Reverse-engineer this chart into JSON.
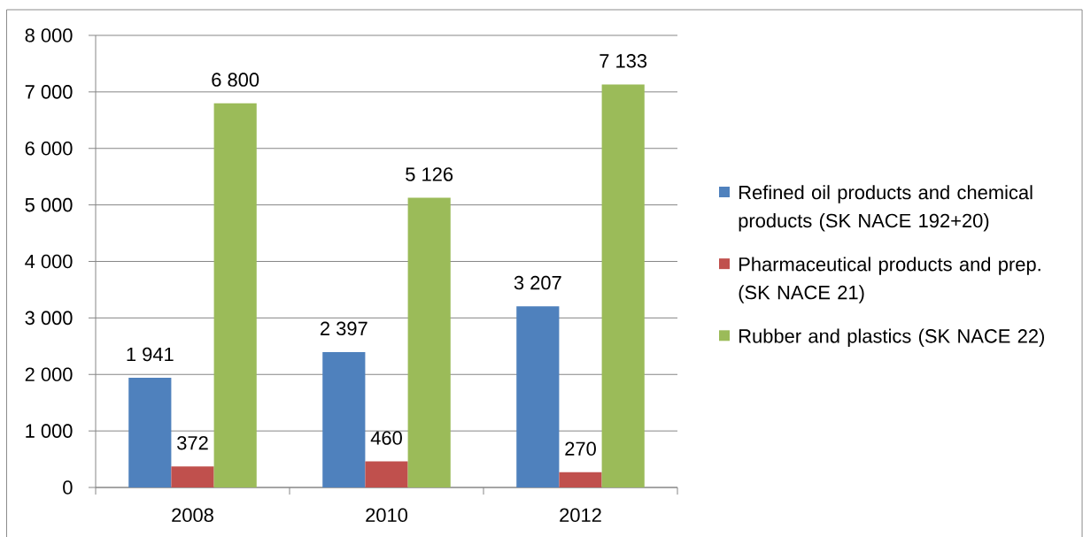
{
  "chart_data": {
    "type": "bar",
    "categories": [
      "2008",
      "2010",
      "2012"
    ],
    "series": [
      {
        "name": "Refined oil products and chemical products (SK NACE 192+20)",
        "color": "#4f81bd",
        "values": [
          1941,
          2397,
          3207
        ],
        "value_labels": [
          "1 941",
          "2 397",
          "3 207"
        ]
      },
      {
        "name": "Pharmaceutical products and prep. (SK NACE 21)",
        "color": "#c0504d",
        "values": [
          372,
          460,
          270
        ],
        "value_labels": [
          "372",
          "460",
          "270"
        ]
      },
      {
        "name": "Rubber and plastics (SK NACE 22)",
        "color": "#9bbb59",
        "values": [
          6800,
          5126,
          7133
        ],
        "value_labels": [
          "6 800",
          "5 126",
          "7 133"
        ]
      }
    ],
    "ylim": [
      0,
      8000
    ],
    "yticks": [
      0,
      {
        "value": 1000,
        "label": "1 000"
      },
      {
        "value": 2000,
        "label": "2 000"
      },
      {
        "value": 3000,
        "label": "3 000"
      },
      {
        "value": 4000,
        "label": "4 000"
      },
      {
        "value": 5000,
        "label": "5 000"
      },
      {
        "value": 6000,
        "label": "6 000"
      },
      {
        "value": 7000,
        "label": "7 000"
      },
      {
        "value": 8000,
        "label": "8 000"
      }
    ],
    "grid": "y",
    "legend": "right"
  }
}
